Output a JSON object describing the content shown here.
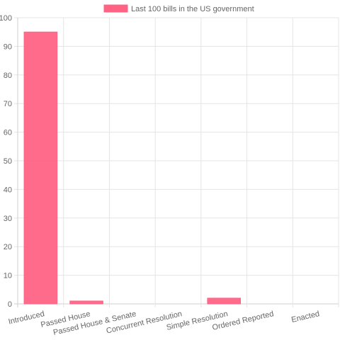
{
  "colors": {
    "bar_fill": "#ff6384",
    "bar_border": "#ff6384",
    "grid": "#e5e5e5",
    "axis": "#cfcfcf",
    "tick_text": "#666666",
    "legend_text": "#666666"
  },
  "chart_data": {
    "type": "bar",
    "categories": [
      "Introduced",
      "Passed House",
      "Passed House & Senate",
      "Concurrent Resolution",
      "Simple Resolution",
      "Ordered Reported",
      "Enacted"
    ],
    "series": [
      {
        "name": "Last 100 bills in the US government",
        "values": [
          95,
          1,
          0,
          0,
          2,
          0,
          0
        ]
      }
    ],
    "ylim": [
      0,
      100
    ],
    "yticks": [
      0,
      10,
      20,
      30,
      40,
      50,
      60,
      70,
      80,
      90,
      100
    ],
    "grid": true,
    "legend_position": "top-center",
    "xlabel": "",
    "ylabel": "",
    "title": ""
  }
}
